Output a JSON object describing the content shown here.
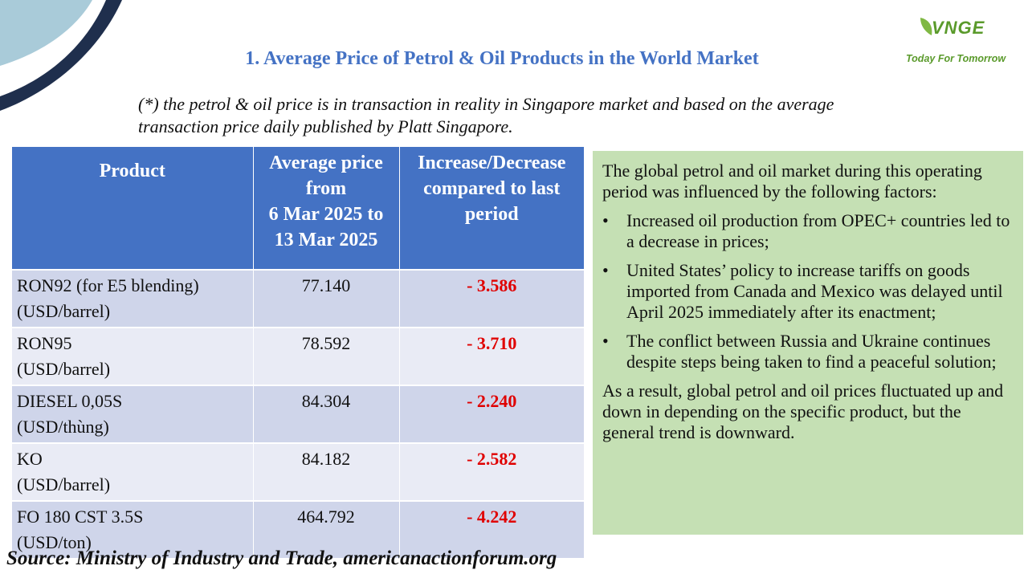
{
  "logo": {
    "mark": "VNGE",
    "tagline": "Today For Tomorrow"
  },
  "title": "1. Average Price of Petrol & Oil Products in the World Market",
  "note_lines": [
    "(*) the petrol & oil price is in transaction in reality in Singapore market and based on the average",
    "transaction price daily published by Platt Singapore."
  ],
  "table": {
    "headers": {
      "product": "Product",
      "avg_price_lines": [
        "Average price",
        "from",
        "6 Mar 2025 to",
        "13 Mar 2025"
      ],
      "change_lines": [
        "Increase/Decrease",
        "compared to last",
        "period"
      ]
    },
    "rows": [
      {
        "product": "RON92 (for E5 blending)",
        "unit": "(USD/barrel)",
        "price": "77.140",
        "change": "- 3.586"
      },
      {
        "product": "RON95",
        "unit": "(USD/barrel)",
        "price": "78.592",
        "change": "- 3.710"
      },
      {
        "product": "DIESEL 0,05S",
        "unit": "(USD/thùng)",
        "price": "84.304",
        "change": "- 2.240"
      },
      {
        "product": "KO",
        "unit": "(USD/barrel)",
        "price": "84.182",
        "change": "- 2.582"
      },
      {
        "product": "FO 180 CST 3.5S",
        "unit": "(USD/ton)",
        "price": "464.792",
        "change": "- 4.242"
      }
    ]
  },
  "panel": {
    "intro": "The global petrol and oil market during this operating period was influenced by the following factors:",
    "bullet_symbol": "•",
    "bullets": [
      "Increased oil production from OPEC+ countries led to a decrease in prices;",
      "United States’ policy to increase tariffs on goods imported from Canada and Mexico was delayed until April 2025 immediately after its enactment;",
      "The conflict between Russia and Ukraine continues despite steps being taken to find a peaceful solution;"
    ],
    "conclusion": "As a result, global petrol and oil prices fluctuated up and down in depending on the specific product, but the general trend is downward."
  },
  "source": "Source: Ministry of Industry and Trade, americanactionforum.org",
  "colors": {
    "header_blue": "#4472c4",
    "row_dark": "#cfd5ea",
    "row_light": "#e9ebf5",
    "change_red": "#e00000",
    "panel_green": "#c5e0b4",
    "logo_green": "#5a9a2b",
    "deco_navy": "#1f2f4d",
    "deco_lightblue": "#a9cbd9"
  }
}
